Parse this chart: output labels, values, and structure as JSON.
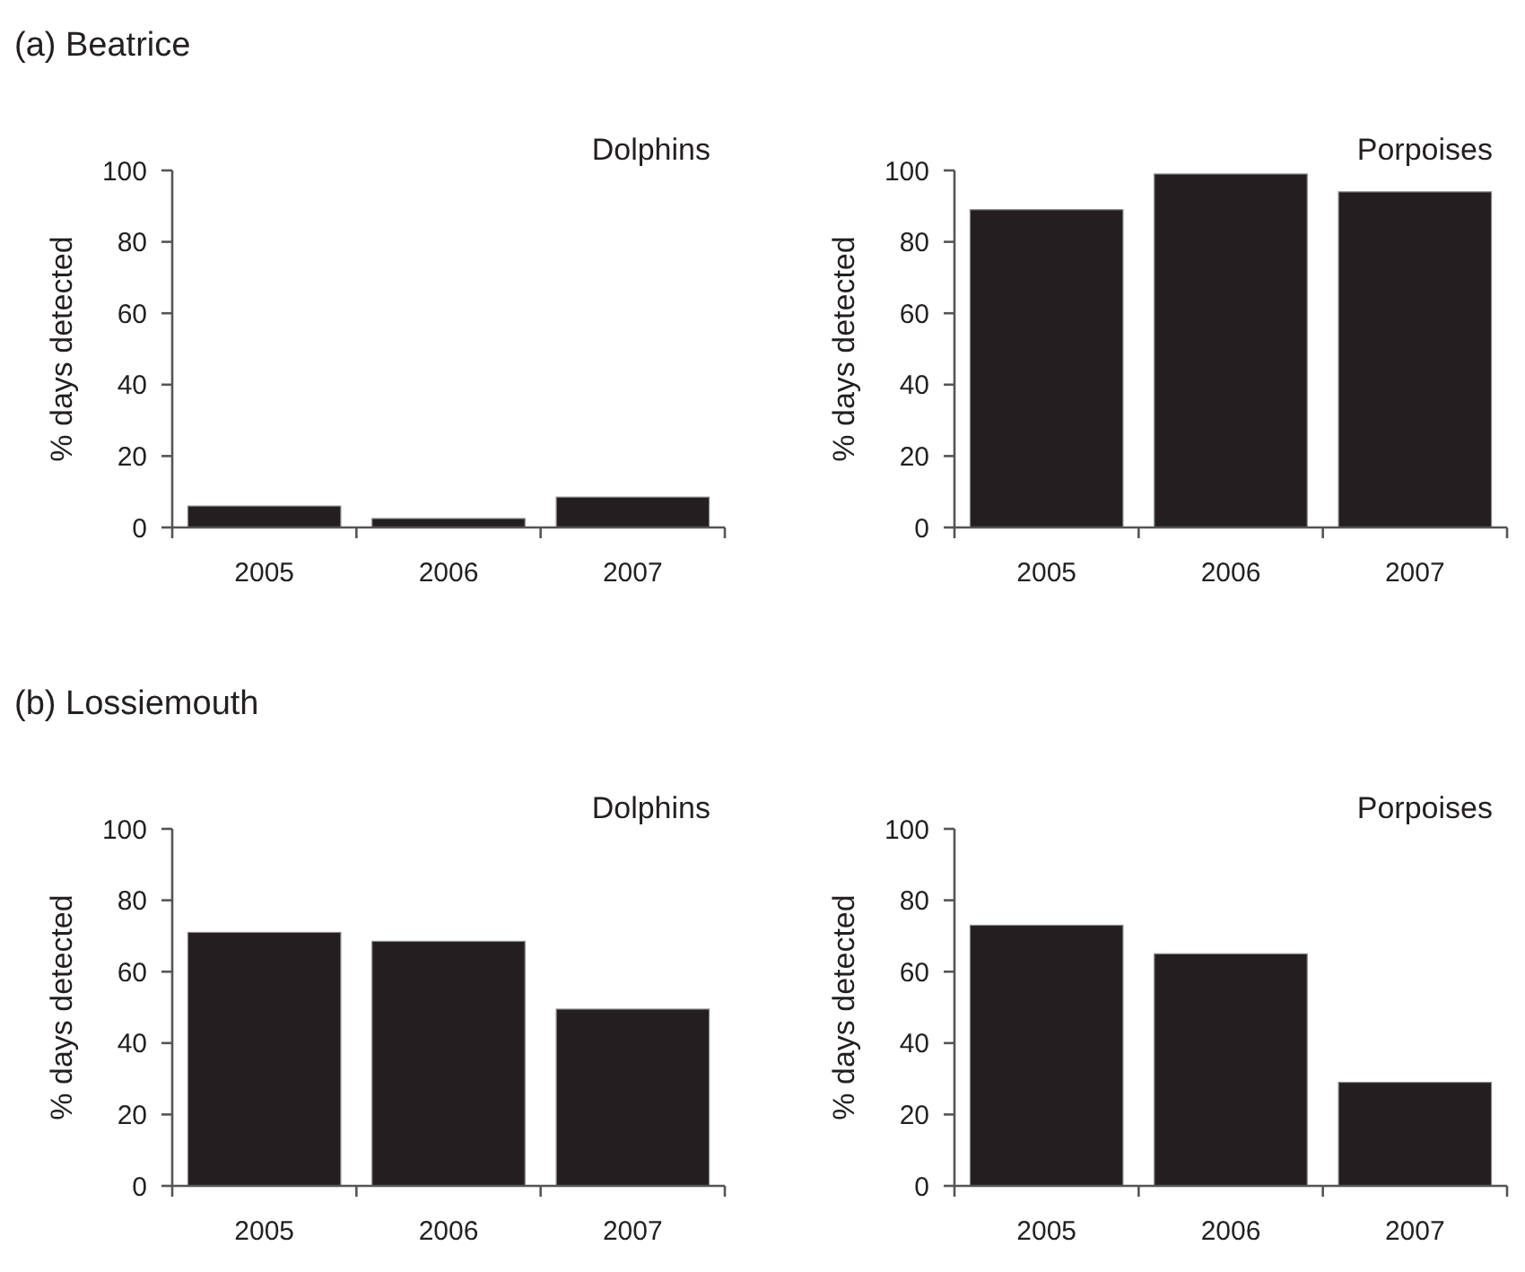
{
  "chart_data": [
    {
      "type": "bar",
      "title": "(a) Beatrice",
      "subtitle": "Dolphins",
      "ylabel": "% days detected",
      "categories": [
        "2005",
        "2006",
        "2007"
      ],
      "values": [
        6,
        2.5,
        8.5
      ],
      "color": "#231f20",
      "ylim": [
        0,
        100
      ],
      "yticks": [
        0,
        20,
        40,
        60,
        80,
        100
      ],
      "grid": false
    },
    {
      "type": "bar",
      "subtitle": "Porpoises",
      "ylabel": "% days detected",
      "categories": [
        "2005",
        "2006",
        "2007"
      ],
      "values": [
        89,
        99,
        94
      ],
      "color": "#231f20",
      "ylim": [
        0,
        100
      ],
      "yticks": [
        0,
        20,
        40,
        60,
        80,
        100
      ],
      "grid": false
    },
    {
      "type": "bar",
      "title": "(b) Lossiemouth",
      "subtitle": "Dolphins",
      "ylabel": "% days detected",
      "categories": [
        "2005",
        "2006",
        "2007"
      ],
      "values": [
        71,
        68.5,
        49.5
      ],
      "color": "#231f20",
      "ylim": [
        0,
        100
      ],
      "yticks": [
        0,
        20,
        40,
        60,
        80,
        100
      ],
      "grid": false
    },
    {
      "type": "bar",
      "subtitle": "Porpoises",
      "ylabel": "% days detected",
      "categories": [
        "2005",
        "2006",
        "2007"
      ],
      "values": [
        73,
        65,
        29
      ],
      "color": "#231f20",
      "ylim": [
        0,
        100
      ],
      "yticks": [
        0,
        20,
        40,
        60,
        80,
        100
      ],
      "grid": false
    }
  ]
}
